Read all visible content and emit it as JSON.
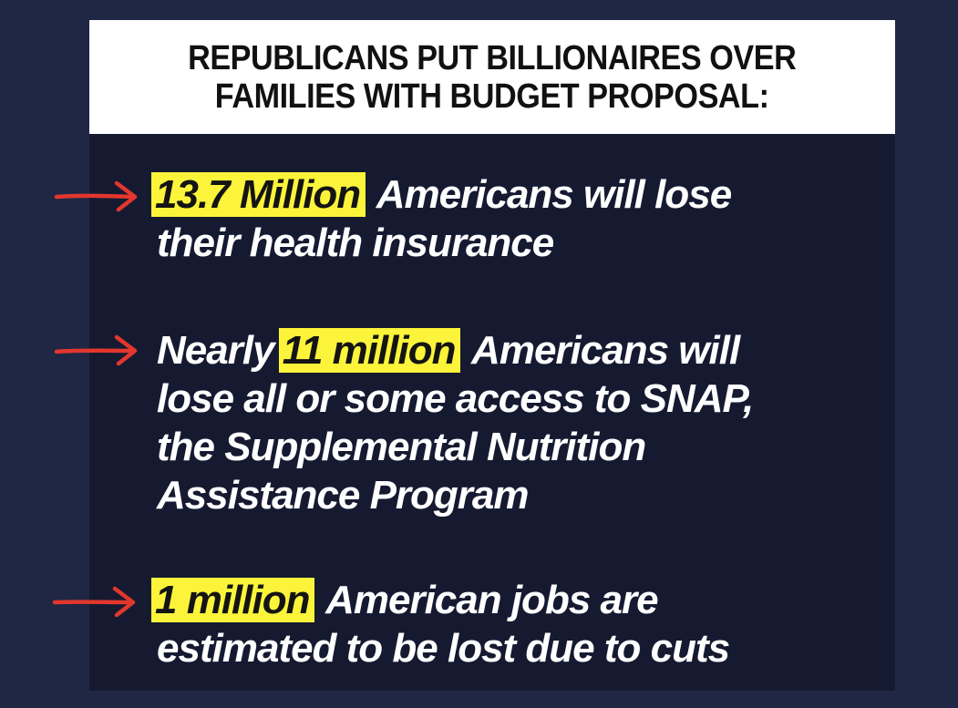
{
  "header": {
    "title_line1": "REPUBLICANS PUT BILLIONAIRES OVER",
    "title_line2": "FAMILIES WITH BUDGET PROPOSAL:"
  },
  "bullets": [
    {
      "highlight": "13.7 Million",
      "line1_rest": " Americans will lose",
      "line2": "their health insurance"
    },
    {
      "line1_prefix": "Nearly ",
      "highlight": "11 million",
      "line1_rest": " Americans will",
      "line2": "lose all or some access to SNAP,",
      "line3": "the Supplemental Nutrition",
      "line4": "Assistance Program"
    },
    {
      "highlight": "1 million",
      "line1_rest": " American jobs are",
      "line2": "estimated to be lost due to cuts"
    }
  ],
  "colors": {
    "background": "#1f2745",
    "card": "#161a31",
    "highlight": "#fbf43a",
    "arrow": "#e2372d",
    "text": "#ffffff"
  },
  "icons": {
    "bullet_marker": "red-arrow-icon"
  }
}
